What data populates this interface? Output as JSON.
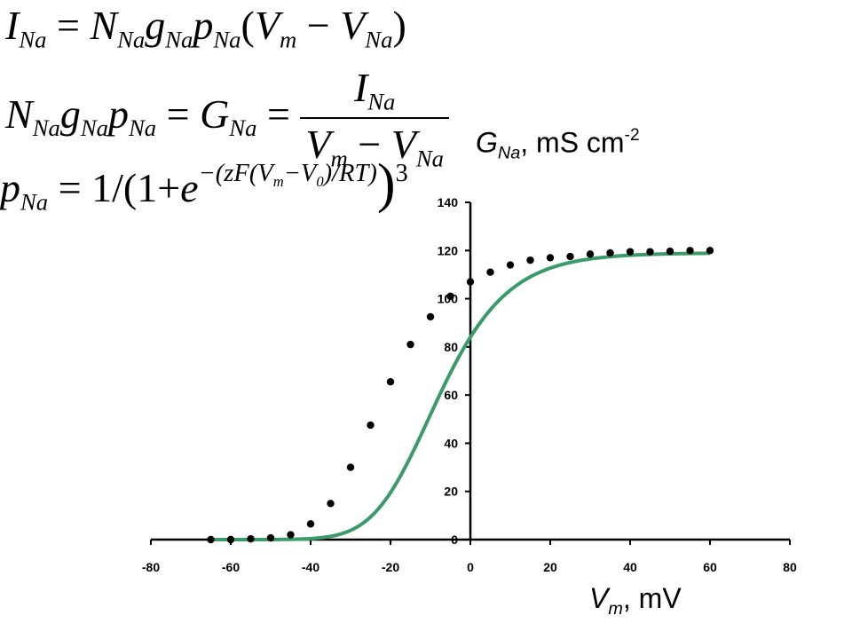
{
  "equations": {
    "eq1": {
      "I": "I",
      "Na": "Na",
      "eq": "=",
      "N": "N",
      "g": "g",
      "p": "p",
      "open": "(",
      "V": "V",
      "m": "m",
      "minus": "−",
      "close": ")"
    },
    "eq2": {
      "N": "N",
      "Na": "Na",
      "g": "g",
      "p": "p",
      "eq": "=",
      "G": "G",
      "I": "I",
      "V": "V",
      "m": "m",
      "minus": "−"
    },
    "eq3": {
      "p": "p",
      "Na": "Na",
      "eq": "=",
      "one_over": "1/(1+",
      "e": "e",
      "exponent": "−(zF(V",
      "m": "m",
      "exp_mid": "−V",
      "zero": "0",
      "exp_end": ")/RT)",
      "paren": ")",
      "cube": "3"
    }
  },
  "chart_data": {
    "type": "scatter",
    "ylabel_main": "G",
    "ylabel_sub": "Na",
    "ylabel_rest": ", mS cm",
    "ylabel_sup": "-2",
    "xlabel_main": "V",
    "xlabel_sub": "m",
    "xlabel_rest": ", mV",
    "xlim": [
      -80,
      80
    ],
    "ylim": [
      0,
      140
    ],
    "xticks": [
      -80,
      -60,
      -40,
      -20,
      0,
      20,
      40,
      60,
      80
    ],
    "yticks": [
      0,
      20,
      40,
      60,
      80,
      100,
      120,
      140
    ],
    "points": {
      "x": [
        -65,
        -60,
        -55,
        -50,
        -45,
        -40,
        -35,
        -30,
        -25,
        -20,
        -15,
        -10,
        -5,
        0,
        5,
        10,
        15,
        20,
        25,
        30,
        35,
        40,
        45,
        50,
        55,
        60
      ],
      "y": [
        0,
        0,
        0.3,
        0.7,
        2,
        6.5,
        15,
        30,
        47.5,
        65.5,
        81,
        92.5,
        101,
        107,
        111,
        114,
        116,
        117,
        117.5,
        118.5,
        119,
        119.5,
        119.5,
        119.7,
        120,
        120
      ]
    },
    "fit": {
      "Gmax": 119,
      "V0": -22,
      "k": 10.5,
      "power": 3
    },
    "colors": {
      "fit": "#3a9a6a",
      "points": "#000000",
      "axes": "#000000"
    }
  }
}
